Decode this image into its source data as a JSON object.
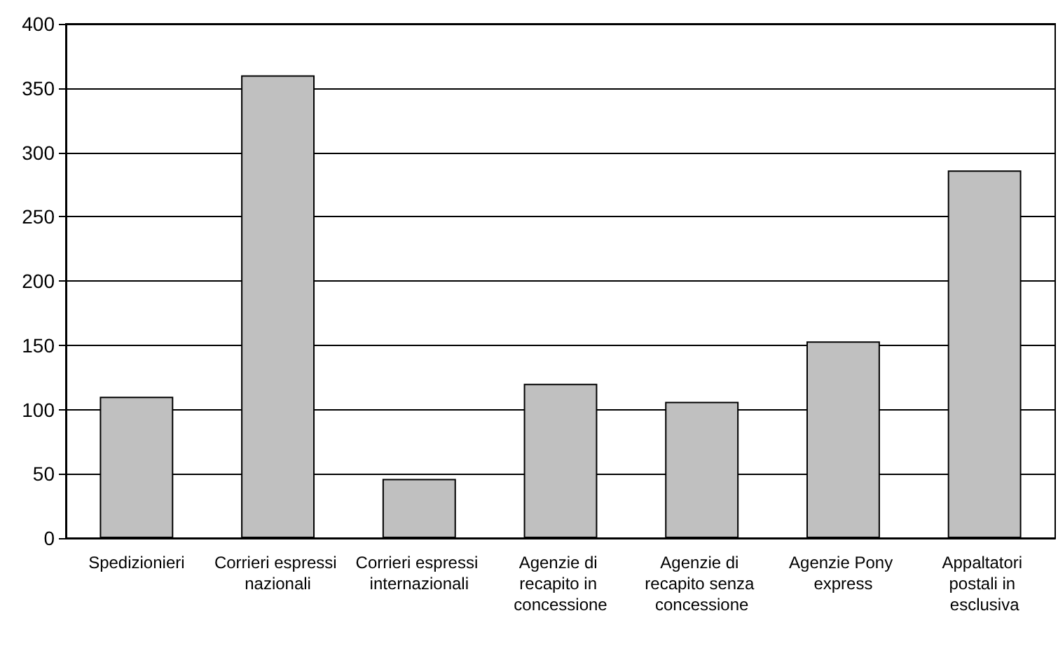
{
  "chart_data": {
    "type": "bar",
    "categories": [
      "Spedizionieri",
      "Corrieri espressi nazionali",
      "Corrieri espressi internazionali",
      "Agenzie di recapito in concessione",
      "Agenzie di recapito senza concessione",
      "Agenzie Pony express",
      "Appaltatori postali in esclusiva"
    ],
    "values": [
      110,
      360,
      46,
      120,
      106,
      153,
      286
    ],
    "color": "#c0c0c0",
    "ylim": [
      0,
      400
    ],
    "yticks": [
      0,
      50,
      100,
      150,
      200,
      250,
      300,
      350,
      400
    ],
    "grid": "y"
  }
}
